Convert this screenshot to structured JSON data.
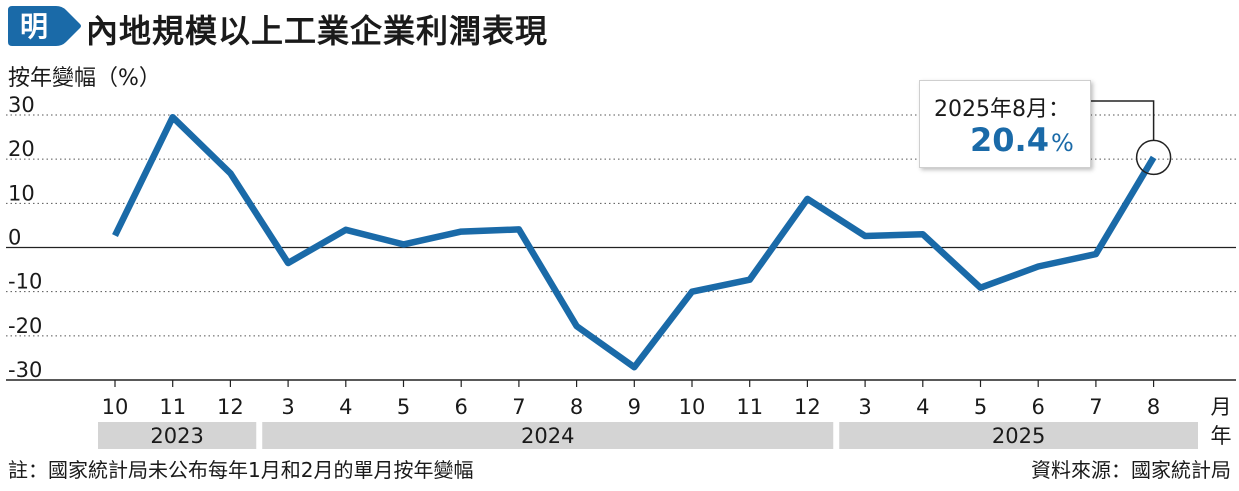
{
  "header": {
    "logo_char": "明",
    "title": "內地規模以上工業企業利潤表現"
  },
  "colors": {
    "line": "#1a6aa8",
    "logo_bg": "#1a6aa8",
    "year_band": "#d4d4d4",
    "grid": "#555555"
  },
  "callout": {
    "label": "2025年8月：",
    "value": "20.4",
    "unit": "%"
  },
  "footer": {
    "note": "註：國家統計局未公布每年1月和2月的單月按年變幅",
    "source": "資料來源：國家統計局"
  },
  "chart_data": {
    "type": "line",
    "title": "內地規模以上工業企業利潤表現",
    "ylabel": "按年變幅（%）",
    "x_unit_month": "月",
    "x_unit_year": "年",
    "ylim": [
      -30,
      30
    ],
    "yticks": [
      30,
      20,
      10,
      0,
      -10,
      -20,
      -30
    ],
    "grid": "dotted horizontal",
    "categories": [
      "10",
      "11",
      "12",
      "3",
      "4",
      "5",
      "6",
      "7",
      "8",
      "9",
      "10",
      "11",
      "12",
      "3",
      "4",
      "5",
      "6",
      "7",
      "8"
    ],
    "years": [
      {
        "label": "2023",
        "from": 0,
        "to": 2
      },
      {
        "label": "2024",
        "from": 3,
        "to": 12
      },
      {
        "label": "2025",
        "from": 13,
        "to": 18
      }
    ],
    "series": [
      {
        "values": [
          2.7,
          29.5,
          16.8,
          -3.5,
          4.0,
          0.7,
          3.6,
          4.1,
          -17.8,
          -27.1,
          -10.0,
          -7.3,
          11.0,
          2.6,
          3.0,
          -9.1,
          -4.3,
          -1.5,
          20.4
        ]
      }
    ],
    "highlight_index": 18
  }
}
